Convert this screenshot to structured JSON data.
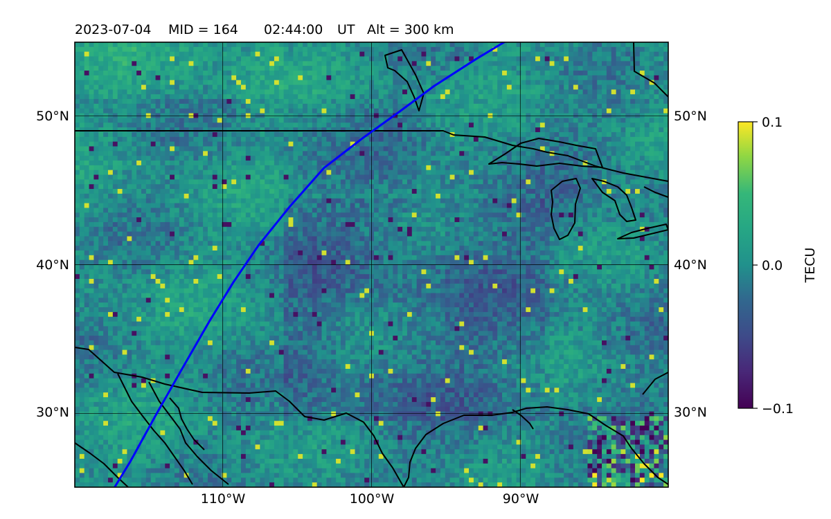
{
  "title": {
    "date": "2023-07-04",
    "mid": "MID = 164",
    "time": "02:44:00",
    "ut": "UT",
    "alt": "Alt = 300 km"
  },
  "map": {
    "extent": {
      "lon_min": -119.95,
      "lon_max": -80.05,
      "lat_min": 25.05,
      "lat_max": 54.95
    },
    "grid": true,
    "lon_ticks": [
      {
        "value": -110,
        "label": "110°W"
      },
      {
        "value": -100,
        "label": "100°W"
      },
      {
        "value": -90,
        "label": "90°W"
      }
    ],
    "lat_ticks": [
      {
        "value": 50,
        "label": "50°N"
      },
      {
        "value": 40,
        "label": "40°N"
      },
      {
        "value": 30,
        "label": "30°N"
      }
    ],
    "field": "TEC perturbation (dTEC) map",
    "colormap": "viridis",
    "range": [
      -0.1,
      0.1
    ],
    "satellite_track_color": "#0000ff",
    "satellite_track": [
      [
        -117.3,
        25.0
      ],
      [
        -116.2,
        26.8
      ],
      [
        -114.5,
        29.9
      ],
      [
        -112.8,
        32.9
      ],
      [
        -110.9,
        36.2
      ],
      [
        -109.3,
        38.8
      ],
      [
        -107.6,
        41.3
      ],
      [
        -105.5,
        43.9
      ],
      [
        -103.2,
        46.5
      ],
      [
        -100.6,
        48.5
      ],
      [
        -98.1,
        50.3
      ],
      [
        -95.8,
        52.0
      ],
      [
        -93.0,
        53.8
      ],
      [
        -91.0,
        55.0
      ]
    ],
    "boundary_color": "#000000"
  },
  "colorbar": {
    "label": "TECU",
    "ticks": [
      {
        "value": 0.1,
        "label": "0.1"
      },
      {
        "value": 0.0,
        "label": "0.0"
      },
      {
        "value": -0.1,
        "label": "−0.1"
      }
    ]
  }
}
